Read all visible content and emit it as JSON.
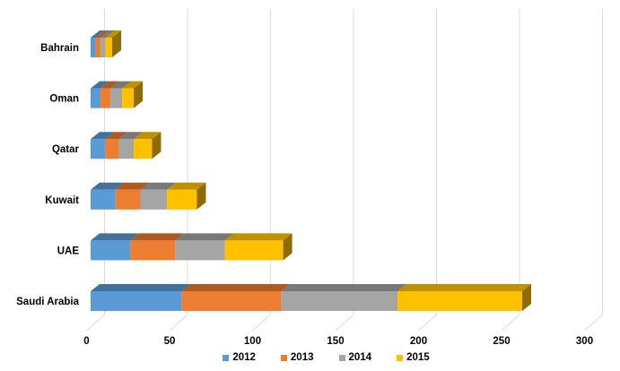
{
  "chart_data": {
    "type": "bar",
    "orientation": "horizontal",
    "stacked": true,
    "style": "3d",
    "title": "",
    "categories": [
      "Bahrain",
      "Oman",
      "Qatar",
      "Kuwait",
      "UAE",
      "Saudi Arabia"
    ],
    "series": [
      {
        "name": "2012",
        "color": "#5B9BD5",
        "top_color": "#41719C",
        "values": [
          3,
          6,
          9,
          15,
          24,
          55
        ]
      },
      {
        "name": "2013",
        "color": "#ED7D31",
        "top_color": "#AE5A21",
        "values": [
          3,
          6,
          8,
          15,
          27,
          60
        ]
      },
      {
        "name": "2014",
        "color": "#A5A5A5",
        "top_color": "#787878",
        "values": [
          3,
          7,
          9,
          16,
          30,
          70
        ]
      },
      {
        "name": "2015",
        "color": "#FFC000",
        "top_color": "#BF9000",
        "values": [
          4,
          7,
          11,
          18,
          35,
          75
        ]
      }
    ],
    "bar_end_cap_color": "#8F6B00",
    "x_ticks": [
      "0",
      "50",
      "100",
      "150",
      "200",
      "250",
      "300"
    ],
    "x_tick_values": [
      0,
      50,
      100,
      150,
      200,
      250,
      300
    ],
    "xlim": [
      0,
      300
    ],
    "grid": true,
    "gridline_color": "#DDDDDD",
    "background_color": "#FFFFFF",
    "text_color": "#000000",
    "legend_position": "bottom",
    "legend_labels": [
      "2012",
      "2013",
      "2014",
      "2015"
    ]
  }
}
